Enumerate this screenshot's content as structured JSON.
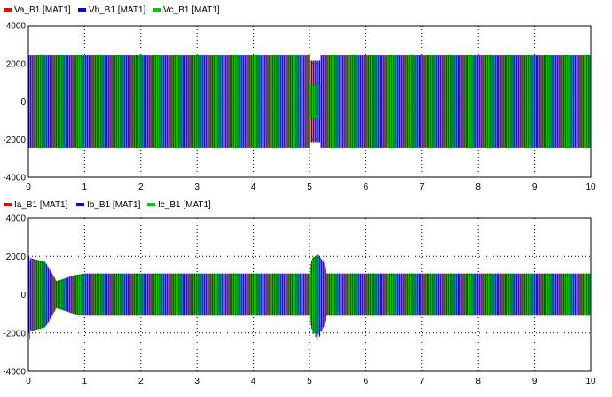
{
  "chart_data": [
    {
      "type": "line",
      "title": "",
      "xlabel": "",
      "ylabel": "",
      "xlim": [
        0,
        10
      ],
      "ylim": [
        -4000,
        4000
      ],
      "xticks": [
        "0",
        "1",
        "2",
        "3",
        "4",
        "5",
        "6",
        "7",
        "8",
        "9",
        "10"
      ],
      "yticks": [
        "4000",
        "2000",
        "0",
        "-2000",
        "-4000"
      ],
      "grid": true,
      "legend_position": "top-left",
      "series": [
        {
          "name": "Va_B1 [MAT1]",
          "color": "#ff0000",
          "envelope": {
            "x": [
              0,
              5.0,
              5.0,
              5.2,
              5.2,
              10
            ],
            "upper": [
              2450,
              2450,
              2150,
              2150,
              2450,
              2450
            ],
            "lower": [
              -2450,
              -2450,
              -2150,
              -2150,
              -2450,
              -2450
            ]
          }
        },
        {
          "name": "Vb_B1 [MAT1]",
          "color": "#0000ff",
          "envelope": {
            "x": [
              0,
              5.0,
              5.0,
              5.2,
              5.2,
              10
            ],
            "upper": [
              2450,
              2450,
              2150,
              2150,
              2450,
              2450
            ],
            "lower": [
              -2450,
              -2450,
              -2150,
              -2150,
              -2450,
              -2450
            ]
          }
        },
        {
          "name": "Vc_B1 [MAT1]",
          "color": "#00cc00",
          "envelope": {
            "x": [
              0,
              5.0,
              5.0,
              5.2,
              5.2,
              10
            ],
            "upper": [
              2450,
              2450,
              900,
              900,
              2450,
              2450
            ],
            "lower": [
              -2450,
              -2450,
              -900,
              -900,
              -2450,
              -2450
            ]
          }
        }
      ]
    },
    {
      "type": "line",
      "title": "",
      "xlabel": "",
      "ylabel": "",
      "xlim": [
        0,
        10
      ],
      "ylim": [
        -4000,
        4000
      ],
      "xticks": [
        "0",
        "1",
        "2",
        "3",
        "4",
        "5",
        "6",
        "7",
        "8",
        "9",
        "10"
      ],
      "yticks": [
        "4000",
        "2000",
        "0",
        "-2000",
        "-4000"
      ],
      "grid": true,
      "legend_position": "top-left",
      "series": [
        {
          "name": "Ia_B1 [MAT1]",
          "color": "#ff0000",
          "envelope": {
            "x": [
              0,
              0.05,
              0.3,
              0.5,
              0.8,
              1.0,
              5.0,
              5.05,
              5.15,
              5.25,
              5.3,
              10
            ],
            "upper": [
              1600,
              1900,
              1700,
              700,
              1000,
              1100,
              1100,
              1900,
              2100,
              1700,
              1100,
              1100
            ],
            "lower": [
              -1600,
              -1900,
              -1700,
              -700,
              -1000,
              -1100,
              -1100,
              -1900,
              -2100,
              -1700,
              -1100,
              -1100
            ]
          }
        },
        {
          "name": "Ib_B1 [MAT1]",
          "color": "#0000ff",
          "envelope": {
            "x": [
              0,
              0.05,
              0.3,
              0.5,
              0.8,
              1.0,
              5.0,
              5.05,
              5.15,
              5.25,
              5.3,
              10
            ],
            "upper": [
              2000,
              1900,
              1700,
              700,
              1000,
              1100,
              1100,
              1900,
              2100,
              1700,
              1100,
              1100
            ],
            "lower": [
              -2000,
              -1900,
              -1700,
              -700,
              -1000,
              -1100,
              -1100,
              -1900,
              -2400,
              -1700,
              -1100,
              -1100
            ]
          }
        },
        {
          "name": "Ic_B1 [MAT1]",
          "color": "#00cc00",
          "envelope": {
            "x": [
              0,
              0.05,
              0.3,
              0.5,
              0.8,
              1.0,
              5.0,
              5.05,
              5.15,
              5.25,
              5.3,
              10
            ],
            "upper": [
              1600,
              1900,
              1700,
              700,
              1000,
              1100,
              1100,
              1900,
              2100,
              1700,
              1100,
              1100
            ],
            "lower": [
              -2700,
              -1900,
              -1700,
              -700,
              -1000,
              -1100,
              -1100,
              -1900,
              -2100,
              -1700,
              -1100,
              -1100
            ]
          }
        }
      ]
    }
  ]
}
